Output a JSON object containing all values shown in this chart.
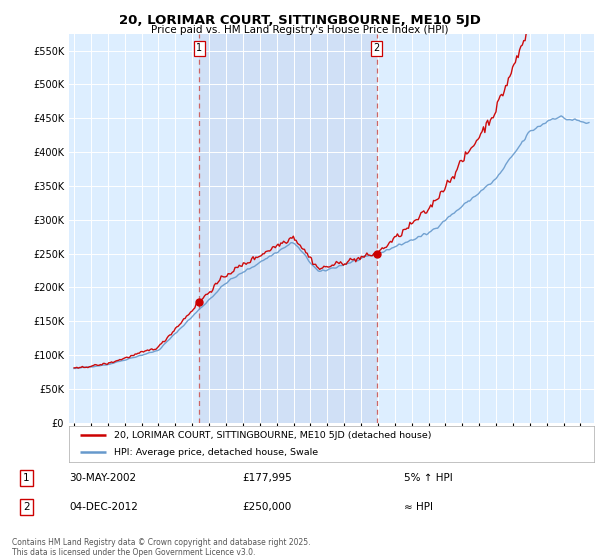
{
  "title": "20, LORIMAR COURT, SITTINGBOURNE, ME10 5JD",
  "subtitle": "Price paid vs. HM Land Registry's House Price Index (HPI)",
  "background_color": "#ffffff",
  "plot_bg_color": "#ddeeff",
  "grid_color": "#ccddee",
  "shade_color": "#c8d8f0",
  "annotation1": {
    "label": "1",
    "date": "30-MAY-2002",
    "price": "£177,995",
    "note": "5% ↑ HPI"
  },
  "annotation2": {
    "label": "2",
    "date": "04-DEC-2012",
    "price": "£250,000",
    "note": "≈ HPI"
  },
  "legend_entry1": "20, LORIMAR COURT, SITTINGBOURNE, ME10 5JD (detached house)",
  "legend_entry2": "HPI: Average price, detached house, Swale",
  "footer": "Contains HM Land Registry data © Crown copyright and database right 2025.\nThis data is licensed under the Open Government Licence v3.0.",
  "house_color": "#cc0000",
  "hpi_color": "#6699cc",
  "dot_color": "#cc0000",
  "vline_color": "#cc6666",
  "yticks": [
    0,
    50000,
    100000,
    150000,
    200000,
    250000,
    300000,
    350000,
    400000,
    450000,
    500000,
    550000
  ],
  "marker1_x": 2002.41,
  "marker1_y": 177995,
  "marker2_x": 2012.92,
  "marker2_y": 250000,
  "xmin": 1994.7,
  "xmax": 2025.8,
  "ymin": 0,
  "ymax": 575000
}
